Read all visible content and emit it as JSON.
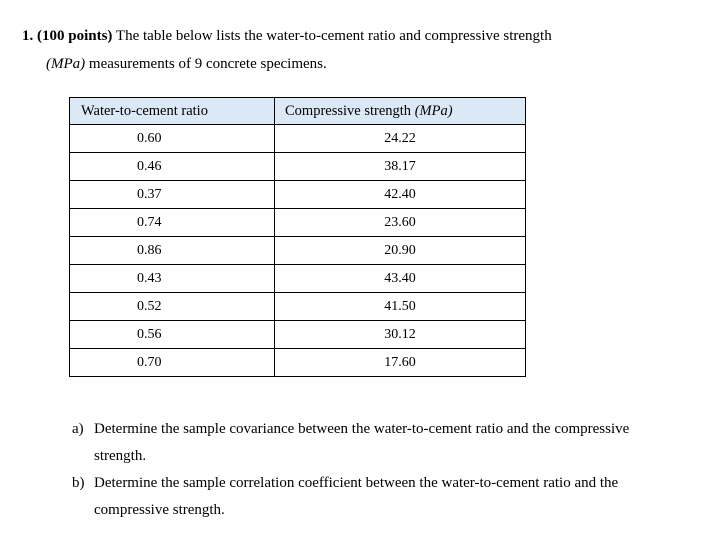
{
  "problem": {
    "number": "1.",
    "points": "(100 points)",
    "text_line1": "The table below lists the water-to-cement ratio and compressive strength",
    "unit": "(MPa)",
    "text_line2": "measurements of 9 concrete specimens."
  },
  "table": {
    "headers": {
      "col1": "Water-to-cement ratio",
      "col2_text": "Compressive strength ",
      "col2_unit": "(MPa)"
    },
    "rows": [
      {
        "ratio": "0.60",
        "strength": "24.22"
      },
      {
        "ratio": "0.46",
        "strength": "38.17"
      },
      {
        "ratio": "0.37",
        "strength": "42.40"
      },
      {
        "ratio": "0.74",
        "strength": "23.60"
      },
      {
        "ratio": "0.86",
        "strength": "20.90"
      },
      {
        "ratio": "0.43",
        "strength": "43.40"
      },
      {
        "ratio": "0.52",
        "strength": "41.50"
      },
      {
        "ratio": "0.56",
        "strength": "30.12"
      },
      {
        "ratio": "0.70",
        "strength": "17.60"
      }
    ]
  },
  "parts": [
    {
      "label": "a)",
      "text": "Determine the sample covariance between the water-to-cement ratio and the compressive strength."
    },
    {
      "label": "b)",
      "text": "Determine the sample correlation coefficient between the water-to-cement ratio and the compressive strength."
    }
  ]
}
